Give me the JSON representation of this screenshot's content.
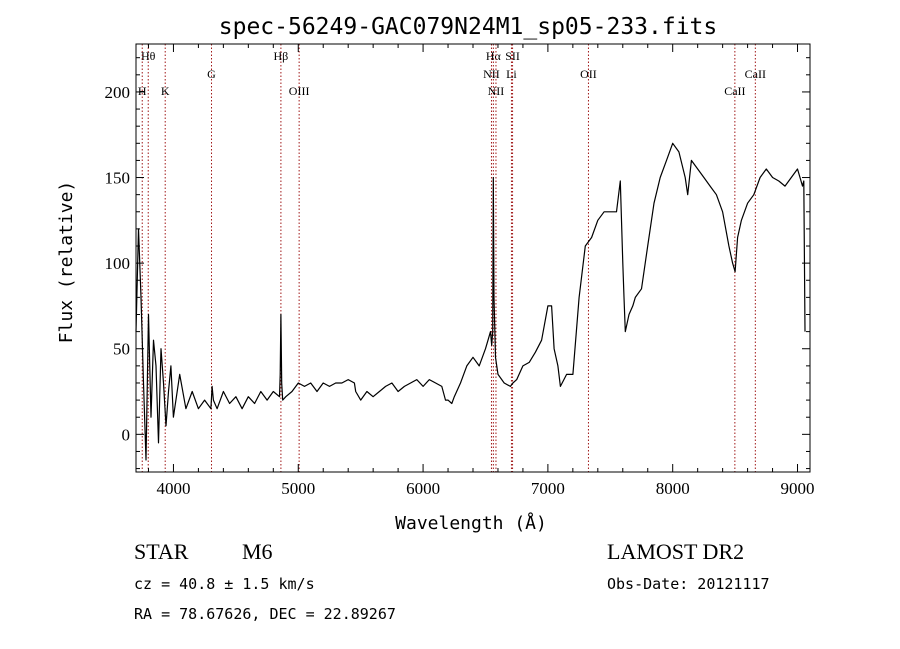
{
  "chart_data": {
    "type": "line",
    "title": "spec-56249-GAC079N24M1_sp05-233.fits",
    "xlabel": "Wavelength (Å)",
    "ylabel": "Flux (relative)",
    "xlim": [
      3700,
      9100
    ],
    "ylim": [
      -22,
      228
    ],
    "x_ticks": [
      4000,
      5000,
      6000,
      7000,
      8000,
      9000
    ],
    "y_ticks": [
      0,
      50,
      100,
      150,
      200
    ],
    "spectral_lines": [
      {
        "name": "Hθ",
        "wavelength": 3798,
        "row": 0
      },
      {
        "name": "H",
        "wavelength": 3750,
        "row": 2
      },
      {
        "name": "K",
        "wavelength": 3934,
        "row": 2
      },
      {
        "name": "G",
        "wavelength": 4305,
        "row": 1
      },
      {
        "name": "Hβ",
        "wavelength": 4861,
        "row": 0
      },
      {
        "name": "OIII",
        "wavelength": 5007,
        "row": 2
      },
      {
        "name": "Hα",
        "wavelength": 6563,
        "row": 0
      },
      {
        "name": "NII",
        "wavelength": 6548,
        "row": 1
      },
      {
        "name": "NII",
        "wavelength": 6584,
        "row": 2
      },
      {
        "name": "SII",
        "wavelength": 6717,
        "row": 0
      },
      {
        "name": "Li",
        "wavelength": 6708,
        "row": 1
      },
      {
        "name": "OII",
        "wavelength": 7325,
        "row": 1
      },
      {
        "name": "CaII",
        "wavelength": 8498,
        "row": 2
      },
      {
        "name": "CaII",
        "wavelength": 8662,
        "row": 1
      }
    ],
    "series": [
      {
        "x": [
          3700,
          3720,
          3740,
          3760,
          3780,
          3800,
          3820,
          3840,
          3860,
          3880,
          3900,
          3920,
          3940,
          3960,
          3980,
          4000,
          4050,
          4100,
          4150,
          4200,
          4250,
          4300,
          4310,
          4320,
          4350,
          4400,
          4450,
          4500,
          4550,
          4600,
          4650,
          4700,
          4750,
          4800,
          4850,
          4855,
          4861,
          4867,
          4875,
          4900,
          4950,
          5000,
          5050,
          5100,
          5150,
          5200,
          5250,
          5300,
          5350,
          5400,
          5450,
          5460,
          5500,
          5550,
          5600,
          5650,
          5700,
          5750,
          5800,
          5850,
          5900,
          5950,
          6000,
          6050,
          6100,
          6150,
          6180,
          6200,
          6230,
          6250,
          6300,
          6350,
          6400,
          6450,
          6500,
          6520,
          6540,
          6550,
          6558,
          6563,
          6568,
          6580,
          6600,
          6650,
          6700,
          6720,
          6750,
          6800,
          6850,
          6900,
          6950,
          7000,
          7030,
          7050,
          7080,
          7100,
          7150,
          7200,
          7250,
          7300,
          7350,
          7400,
          7450,
          7500,
          7550,
          7580,
          7600,
          7610,
          7620,
          7650,
          7680,
          7700,
          7750,
          7800,
          7850,
          7900,
          7950,
          8000,
          8050,
          8100,
          8120,
          8150,
          8200,
          8250,
          8300,
          8350,
          8400,
          8450,
          8480,
          8500,
          8520,
          8550,
          8600,
          8650,
          8700,
          8750,
          8800,
          8850,
          8900,
          8950,
          9000,
          9020,
          9040,
          9050,
          9060
        ],
        "y": [
          60,
          120,
          80,
          30,
          -15,
          70,
          10,
          55,
          40,
          -5,
          50,
          30,
          5,
          25,
          40,
          10,
          35,
          15,
          25,
          15,
          20,
          15,
          28,
          20,
          15,
          25,
          18,
          22,
          15,
          22,
          18,
          25,
          20,
          25,
          22,
          35,
          70,
          30,
          20,
          22,
          25,
          30,
          28,
          30,
          25,
          30,
          28,
          30,
          30,
          32,
          30,
          25,
          20,
          25,
          22,
          25,
          28,
          30,
          25,
          28,
          30,
          32,
          28,
          32,
          30,
          28,
          20,
          20,
          18,
          22,
          30,
          40,
          45,
          40,
          50,
          55,
          60,
          52,
          60,
          150,
          80,
          45,
          35,
          30,
          28,
          30,
          32,
          40,
          42,
          48,
          55,
          75,
          75,
          50,
          40,
          28,
          35,
          35,
          80,
          110,
          115,
          125,
          130,
          130,
          130,
          148,
          100,
          80,
          60,
          70,
          75,
          80,
          85,
          110,
          135,
          150,
          160,
          170,
          165,
          150,
          140,
          160,
          155,
          150,
          145,
          140,
          130,
          110,
          100,
          95,
          115,
          125,
          135,
          140,
          150,
          155,
          150,
          148,
          145,
          150,
          155,
          150,
          145,
          148,
          60
        ]
      }
    ],
    "footer": {
      "object_class": "STAR",
      "subclass": "M6",
      "cz": "cz = 40.8 ± 1.5 km/s",
      "radec": "RA =  78.67626, DEC =  22.89267",
      "survey": "LAMOST DR2",
      "obs_date": "Obs-Date: 20121117"
    }
  }
}
